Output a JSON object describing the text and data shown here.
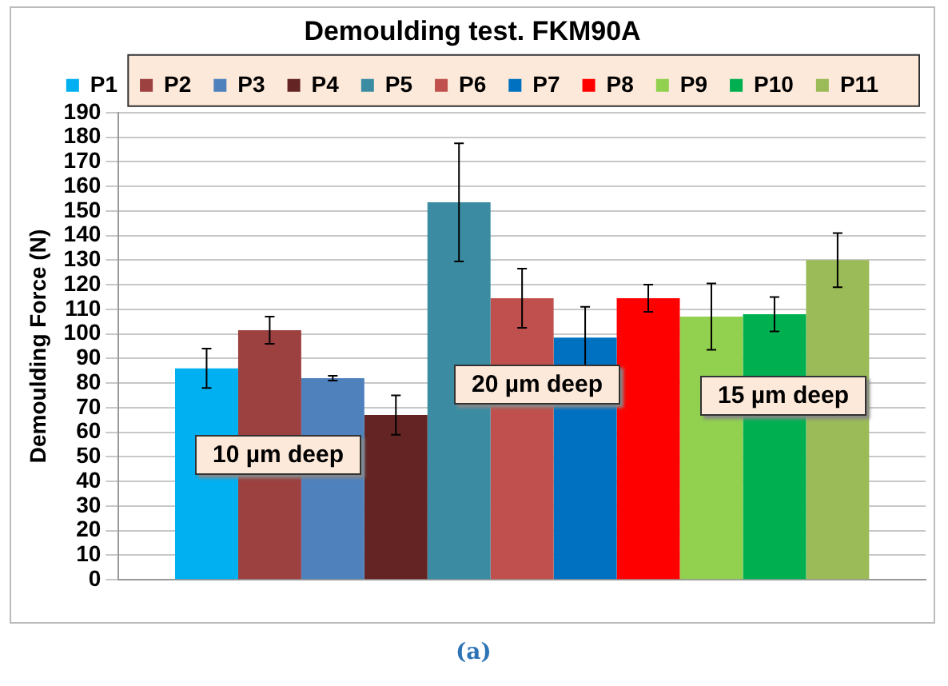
{
  "chart_data": {
    "type": "bar",
    "title": "Demoulding test. FKM90A",
    "ylabel": "Demoulding Force (N)",
    "categories": [
      null
    ],
    "series": [
      {
        "name": "P1",
        "color": "#00b0f0",
        "values": [
          86
        ],
        "errors": [
          8
        ]
      },
      {
        "name": "P2",
        "color": "#9c4040",
        "values": [
          101.5
        ],
        "errors": [
          5.5
        ]
      },
      {
        "name": "P3",
        "color": "#4f81bd",
        "values": [
          82
        ],
        "errors": [
          1
        ]
      },
      {
        "name": "P4",
        "color": "#632423",
        "values": [
          67
        ],
        "errors": [
          8
        ]
      },
      {
        "name": "P5",
        "color": "#3b8ca2",
        "values": [
          153.5
        ],
        "errors": [
          24
        ]
      },
      {
        "name": "P6",
        "color": "#c0504d",
        "values": [
          114.5
        ],
        "errors": [
          12
        ]
      },
      {
        "name": "P7",
        "color": "#0070c0",
        "values": [
          98.5
        ],
        "errors": [
          12.5
        ]
      },
      {
        "name": "P8",
        "color": "#ff0000",
        "values": [
          114.5
        ],
        "errors": [
          5.5
        ]
      },
      {
        "name": "P9",
        "color": "#92d050",
        "values": [
          107
        ],
        "errors": [
          13.5
        ]
      },
      {
        "name": "P10",
        "color": "#00b050",
        "values": [
          108
        ],
        "errors": [
          7
        ]
      },
      {
        "name": "P11",
        "color": "#9bbb59",
        "values": [
          130
        ],
        "errors": [
          11
        ]
      }
    ],
    "ylim": [
      0,
      190
    ],
    "yticks": [
      0,
      10,
      20,
      30,
      40,
      50,
      60,
      70,
      80,
      90,
      100,
      110,
      120,
      130,
      140,
      150,
      160,
      170,
      180,
      190
    ],
    "grid": "y",
    "legend": "top",
    "annotations": [
      "10 µm deep",
      "20 µm deep",
      "15 µm deep",
      "(a)"
    ]
  }
}
